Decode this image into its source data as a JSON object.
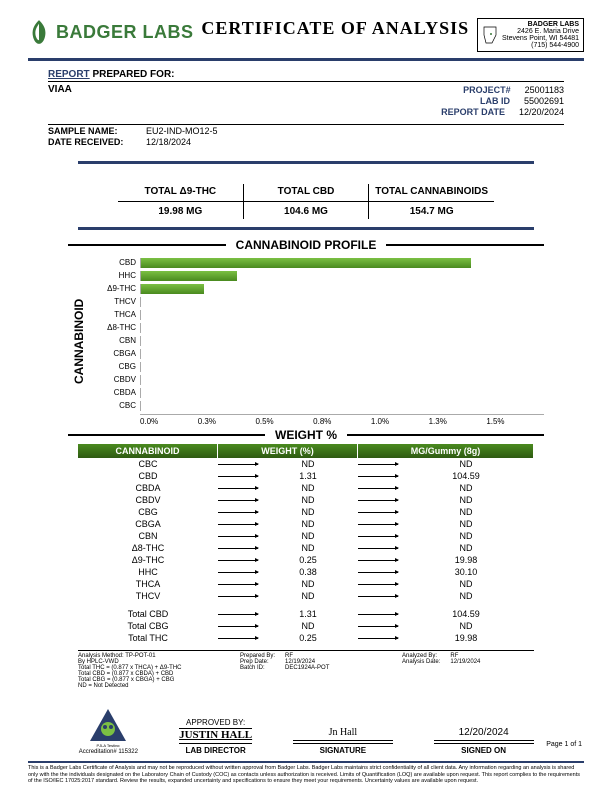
{
  "header": {
    "company_name": "BADGER LABS",
    "logo_color": "#3a7a3a",
    "title": "CERTIFICATE OF ANALYSIS",
    "right_name": "BADGER LABS",
    "right_addr1": "2426 E. Maria Drive",
    "right_addr2": "Stevens Point, WI 54481",
    "right_phone": "(715) 544-4900"
  },
  "report": {
    "heading_u": "REPORT",
    "heading_rest": "PREPARED FOR:",
    "client": "VIAA",
    "project_label": "PROJECT#",
    "project_val": "25001183",
    "labid_label": "LAB ID",
    "labid_val": "55002691",
    "date_label": "REPORT DATE",
    "date_val": "12/20/2024",
    "sample_label": "SAMPLE NAME:",
    "sample_val": "EU2-IND-MO12-5",
    "recv_label": "DATE RECEIVED:",
    "recv_val": "12/18/2024"
  },
  "totals": [
    {
      "h": "TOTAL Δ9-THC",
      "v": "19.98 MG"
    },
    {
      "h": "TOTAL CBD",
      "v": "104.6 MG"
    },
    {
      "h": "TOTAL CANNABINOIDS",
      "v": "154.7 MG"
    }
  ],
  "chart": {
    "title": "CANNABINOID PROFILE",
    "ylabel": "CANNABINOID",
    "xlabel": "WEIGHT %",
    "bar_color": "#5fa02e",
    "xmax": 1.6,
    "xticks": [
      "0.0%",
      "0.3%",
      "0.5%",
      "0.8%",
      "1.0%",
      "1.3%",
      "1.5%"
    ],
    "rows": [
      {
        "lbl": "CBD",
        "val": 1.31
      },
      {
        "lbl": "HHC",
        "val": 0.38
      },
      {
        "lbl": "Δ9-THC",
        "val": 0.25
      },
      {
        "lbl": "THCV",
        "val": 0
      },
      {
        "lbl": "THCA",
        "val": 0
      },
      {
        "lbl": "Δ8-THC",
        "val": 0
      },
      {
        "lbl": "CBN",
        "val": 0
      },
      {
        "lbl": "CBGA",
        "val": 0
      },
      {
        "lbl": "CBG",
        "val": 0
      },
      {
        "lbl": "CBDV",
        "val": 0
      },
      {
        "lbl": "CBDA",
        "val": 0
      },
      {
        "lbl": "CBC",
        "val": 0
      }
    ]
  },
  "table": {
    "headers": [
      "CANNABINOID",
      "WEIGHT (%)",
      "MG/Gummy (8g)"
    ],
    "rows": [
      {
        "c1": "CBC",
        "c2": "ND",
        "c3": "ND"
      },
      {
        "c1": "CBD",
        "c2": "1.31",
        "c3": "104.59"
      },
      {
        "c1": "CBDA",
        "c2": "ND",
        "c3": "ND"
      },
      {
        "c1": "CBDV",
        "c2": "ND",
        "c3": "ND"
      },
      {
        "c1": "CBG",
        "c2": "ND",
        "c3": "ND"
      },
      {
        "c1": "CBGA",
        "c2": "ND",
        "c3": "ND"
      },
      {
        "c1": "CBN",
        "c2": "ND",
        "c3": "ND"
      },
      {
        "c1": "Δ8-THC",
        "c2": "ND",
        "c3": "ND"
      },
      {
        "c1": "Δ9-THC",
        "c2": "0.25",
        "c3": "19.98"
      },
      {
        "c1": "HHC",
        "c2": "0.38",
        "c3": "30.10"
      },
      {
        "c1": "THCA",
        "c2": "ND",
        "c3": "ND"
      },
      {
        "c1": "THCV",
        "c2": "ND",
        "c3": "ND"
      }
    ],
    "totals": [
      {
        "c1": "Total CBD",
        "c2": "1.31",
        "c3": "104.59"
      },
      {
        "c1": "Total CBG",
        "c2": "ND",
        "c3": "ND"
      },
      {
        "c1": "Total THC",
        "c2": "0.25",
        "c3": "19.98"
      }
    ]
  },
  "meta": {
    "left": "Analysis Method: TP-POT-01\nBy HPLC-VWD\nTotal THC = (0.877 x THCA) + Δ9-THC\nTotal CBD = (0.877 x CBDA) + CBD\nTotal CBG = (0.877 x CBGA) + CBG\nND = Not Detected",
    "mid_labels": "Prepared By:\nPrep Date:\nBatch ID:",
    "mid_vals": "RF\n12/19/2024\nDEC1924A-POT",
    "right_labels": "Analyzed By:\nAnalysis Date:",
    "right_vals": "RF\n12/19/2024"
  },
  "sign": {
    "approved_label": "APPROVED BY:",
    "name": "JUSTIN HALL",
    "role": "LAB DIRECTOR",
    "sig_label": "SIGNATURE",
    "sig": "Jn Hall",
    "date": "12/20/2024",
    "date_label": "SIGNED ON",
    "accred": "Accreditation# 115322",
    "page": "Page 1 of 1"
  },
  "footer": "This is a Badger Labs Certificate of Analysis and may not be reproduced without written approval from Badger Labs. Badger Labs maintains strict confidentiality of all client data. Any information regarding an analysis is shared only with the the individuals designated on the Laboratory Chain of Custody (COC) as contacts unless authorization is received. Limits of Quantification (LOQ) are available upon request. This report complies to the requirements of the ISO/IEC 17025:2017 standard. Review the results, expanded uncertainty and specifications to ensure they meet your requirements. Uncertainty values are available upon request.",
  "colors": {
    "accent": "#2a3e6b",
    "green_header": "#3a7a1f"
  }
}
